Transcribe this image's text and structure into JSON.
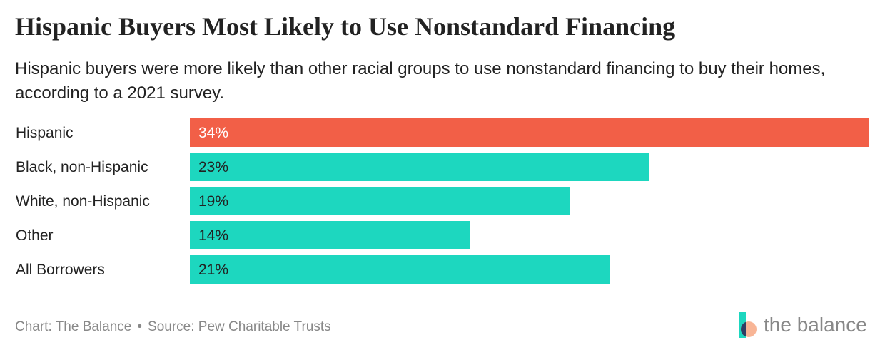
{
  "title": "Hispanic Buyers Most Likely to Use Nonstandard Financing",
  "subtitle": "Hispanic buyers were more likely than other racial groups to use nonstandard financing to buy their homes, according to a 2021 survey.",
  "footer": {
    "chart_credit": "Chart: The Balance",
    "separator": "•",
    "source": "Source: Pew Charitable Trusts"
  },
  "brand": {
    "name": "the balance",
    "icon": "the-balance-logo-icon"
  },
  "colors": {
    "highlight": "#F25F47",
    "bar": "#1DD7BF",
    "text": "#222222",
    "muted": "#888888",
    "logo_teal": "#1DD7BF",
    "logo_peach": "#F8B596",
    "logo_navy": "#2D3E64"
  },
  "chart_data": {
    "type": "bar",
    "orientation": "horizontal",
    "categories": [
      "Hispanic",
      "Black, non-Hispanic",
      "White, non-Hispanic",
      "Other",
      "All Borrowers"
    ],
    "values": [
      34,
      23,
      19,
      14,
      21
    ],
    "data_labels": [
      "34%",
      "23%",
      "19%",
      "14%",
      "21%"
    ],
    "highlight_index": 0,
    "xlabel": "",
    "ylabel": "",
    "xlim": [
      0,
      34
    ],
    "unit": "%",
    "grid": false,
    "legend": "none"
  }
}
